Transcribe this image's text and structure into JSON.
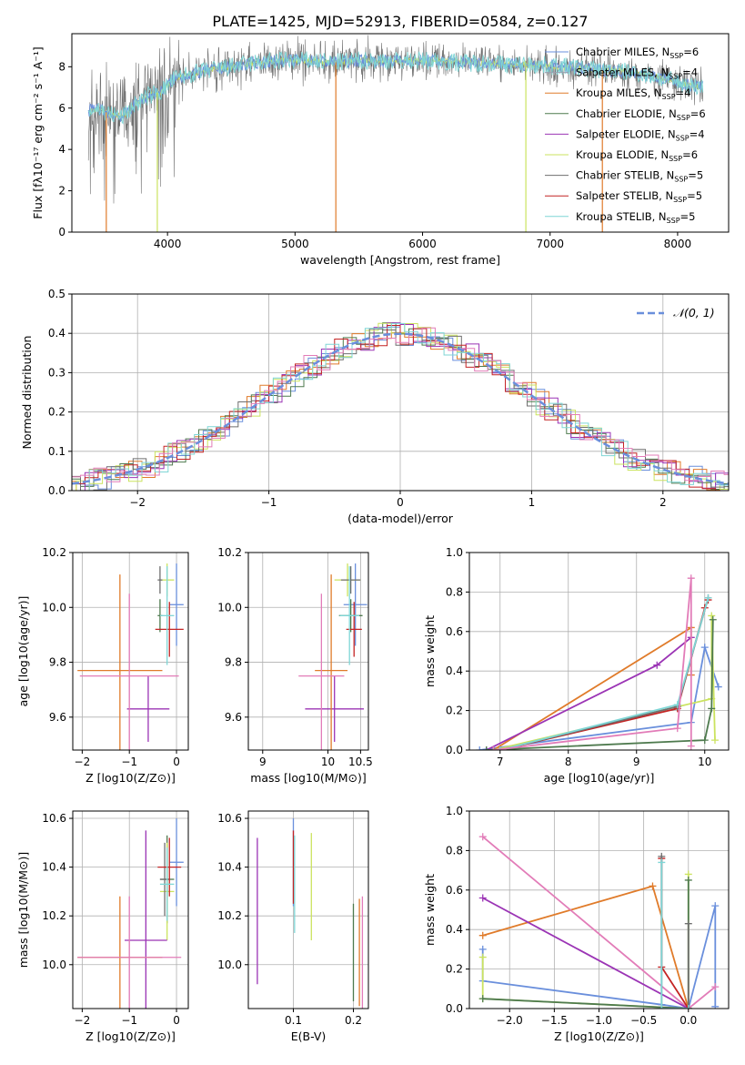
{
  "figure_title": "PLATE=1425, MJD=52913, FIBERID=0584, z=0.127",
  "colors": {
    "Chabrier MILES": "#6a8fdc",
    "Salpeter MILES": "#9aa0b0",
    "Kroupa MILES": "#e07b2a",
    "Chabrier ELODIE": "#4e7a4e",
    "Salpeter ELODIE": "#9b34b5",
    "Kroupa ELODIE": "#cbe35f",
    "Chabrier STELIB": "#6f6f6f",
    "Salpeter STELIB": "#c42424",
    "Kroupa STELIB": "#7fd6d6",
    "pink": "#e27cb8",
    "grid": "#b0b0b0"
  },
  "chart_data": [
    {
      "id": "spectrum",
      "type": "line",
      "title": "PLATE=1425, MJD=52913, FIBERID=0584, z=0.127",
      "xlabel": "wavelength [Angstrom, rest frame]",
      "xlim": [
        3250,
        8400
      ],
      "ylim": [
        0,
        9.6
      ],
      "xticks": [
        4000,
        5000,
        6000,
        7000,
        8000
      ],
      "yticks": [
        0,
        2,
        4,
        6,
        8
      ],
      "grid": false,
      "legend_position": "right",
      "legend": [
        {
          "label": "Chabrier MILES, N_SSP=6",
          "color_key": "Chabrier MILES"
        },
        {
          "label": "Salpeter MILES, N_SSP=4",
          "color_key": "Salpeter MILES"
        },
        {
          "label": "Kroupa MILES, N_SSP=4",
          "color_key": "Kroupa MILES"
        },
        {
          "label": "Chabrier ELODIE, N_SSP=6",
          "color_key": "Chabrier ELODIE"
        },
        {
          "label": "Salpeter ELODIE, N_SSP=4",
          "color_key": "Salpeter ELODIE"
        },
        {
          "label": "Kroupa ELODIE, N_SSP=6",
          "color_key": "Kroupa ELODIE"
        },
        {
          "label": "Chabrier STELIB, N_SSP=5",
          "color_key": "Chabrier STELIB"
        },
        {
          "label": "Salpeter STELIB, N_SSP=5",
          "color_key": "Salpeter STELIB"
        },
        {
          "label": "Kroupa STELIB, N_SSP=5",
          "color_key": "Kroupa STELIB"
        }
      ],
      "continuum": {
        "x": [
          3350,
          3450,
          3550,
          3650,
          3750,
          3850,
          3950,
          4050,
          4150,
          4300,
          4500,
          4700,
          4900,
          5100,
          5300,
          5500,
          5700,
          5900,
          6100,
          6300,
          6500,
          6700,
          6900,
          7100,
          7300,
          7500,
          7700,
          7900,
          8100,
          8200
        ],
        "y": [
          5.8,
          6.0,
          5.7,
          5.6,
          6.2,
          6.6,
          6.8,
          7.4,
          7.6,
          7.8,
          8.0,
          8.2,
          8.3,
          8.3,
          8.2,
          8.3,
          8.3,
          8.3,
          8.3,
          8.2,
          8.2,
          8.1,
          8.1,
          8.0,
          7.9,
          7.8,
          7.7,
          7.4,
          7.1,
          7.0
        ]
      },
      "drops": [
        {
          "x": 3520,
          "y": 0.0,
          "color_key": "Kroupa MILES"
        },
        {
          "x": 3920,
          "y": 0.0,
          "color_key": "Kroupa ELODIE"
        },
        {
          "x": 5320,
          "y": 0.0,
          "color_key": "Kroupa MILES"
        },
        {
          "x": 6810,
          "y": 0.0,
          "color_key": "Kroupa ELODIE"
        },
        {
          "x": 7410,
          "y": 0.0,
          "color_key": "Kroupa MILES"
        }
      ]
    },
    {
      "id": "residuals",
      "type": "line",
      "xlabel": "(data-model)/error",
      "ylabel": "Normed distribution",
      "xlim": [
        -2.5,
        2.5
      ],
      "ylim": [
        0,
        0.5
      ],
      "xticks": [
        -2,
        -1,
        0,
        1,
        2
      ],
      "yticks": [
        0.0,
        0.1,
        0.2,
        0.3,
        0.4,
        0.5
      ],
      "grid": true,
      "legend_position": "top-right",
      "legend_label": "𝒩(0, 1)",
      "gaussian": {
        "mu": 0,
        "sigma": 1,
        "color_key": "Chabrier MILES"
      }
    },
    {
      "id": "age_vs_Z",
      "type": "scatter",
      "xlabel": "Z [log10(Z/Z⊙)]",
      "ylabel": "age  [log10(age/yr)]",
      "xlim": [
        -2.2,
        0.25
      ],
      "ylim": [
        9.48,
        10.2
      ],
      "xticks": [
        -2,
        -1,
        0
      ],
      "yticks": [
        9.6,
        9.8,
        10.0,
        10.2
      ],
      "grid": true,
      "points": [
        {
          "x": 0.0,
          "xerr": 0.15,
          "y": 10.01,
          "yerr": 0.15,
          "color_key": "Chabrier MILES"
        },
        {
          "x": -0.35,
          "xerr": 0.05,
          "y": 9.97,
          "yerr": 0.06,
          "color_key": "Chabrier ELODIE"
        },
        {
          "x": -0.2,
          "xerr": 0.15,
          "y": 10.1,
          "yerr": 0.06,
          "color_key": "Kroupa ELODIE"
        },
        {
          "x": -0.35,
          "xerr": 0.05,
          "y": 10.1,
          "yerr": 0.05,
          "color_key": "Chabrier STELIB"
        },
        {
          "x": -0.15,
          "xerr": 0.3,
          "y": 9.92,
          "yerr": 0.1,
          "color_key": "Salpeter STELIB"
        },
        {
          "x": -0.2,
          "xerr": 0.15,
          "y": 9.97,
          "yerr": 0.18,
          "color_key": "Kroupa STELIB"
        },
        {
          "x": -0.6,
          "xerr": 0.45,
          "y": 9.63,
          "yerr": 0.12,
          "color_key": "Salpeter ELODIE"
        },
        {
          "x": -1.2,
          "xerr": 0.9,
          "y": 9.77,
          "yerr": 0.35,
          "color_key": "Kroupa MILES"
        },
        {
          "x": -1.0,
          "xerr": 1.05,
          "y": 9.75,
          "yerr": 0.3,
          "color_key": "pink"
        }
      ]
    },
    {
      "id": "age_vs_mass",
      "type": "scatter",
      "xlabel": "mass [log10(M/M⊙)]",
      "xlim": [
        8.78,
        10.62
      ],
      "ylim": [
        9.48,
        10.2
      ],
      "xticks": [
        9,
        10
      ],
      "xtick_labels": [
        "9",
        "10"
      ],
      "extra_xtick": {
        "value": 10.5,
        "label": "10.5"
      },
      "yticks": [
        9.6,
        9.8,
        10.0,
        10.2
      ],
      "grid": true,
      "points": [
        {
          "x": 10.42,
          "xerr": 0.18,
          "y": 10.01,
          "yerr": 0.15,
          "color_key": "Chabrier MILES"
        },
        {
          "x": 10.35,
          "xerr": 0.18,
          "y": 9.97,
          "yerr": 0.06,
          "color_key": "Chabrier ELODIE"
        },
        {
          "x": 10.3,
          "xerr": 0.2,
          "y": 10.1,
          "yerr": 0.06,
          "color_key": "Kroupa ELODIE"
        },
        {
          "x": 10.35,
          "xerr": 0.15,
          "y": 10.1,
          "yerr": 0.05,
          "color_key": "Chabrier STELIB"
        },
        {
          "x": 10.4,
          "xerr": 0.12,
          "y": 9.92,
          "yerr": 0.1,
          "color_key": "Salpeter STELIB"
        },
        {
          "x": 10.33,
          "xerr": 0.15,
          "y": 9.97,
          "yerr": 0.18,
          "color_key": "Kroupa STELIB"
        },
        {
          "x": 10.1,
          "xerr": 0.45,
          "y": 9.63,
          "yerr": 0.12,
          "color_key": "Salpeter ELODIE"
        },
        {
          "x": 10.05,
          "xerr": 0.25,
          "y": 9.77,
          "yerr": 0.35,
          "color_key": "Kroupa MILES"
        },
        {
          "x": 9.9,
          "xerr": 0.35,
          "y": 9.75,
          "yerr": 0.3,
          "color_key": "pink"
        }
      ]
    },
    {
      "id": "weight_vs_age",
      "type": "line",
      "xlabel": "age  [log10(age/yr)]",
      "ylabel": "mass weight",
      "xlim": [
        6.55,
        10.35
      ],
      "ylim": [
        0,
        1.0
      ],
      "xticks": [
        7,
        8,
        9,
        10
      ],
      "yticks": [
        0.0,
        0.2,
        0.4,
        0.6,
        0.8,
        1.0
      ],
      "grid": true,
      "series": [
        {
          "color_key": "Chabrier MILES",
          "x": [
            6.7,
            9.8,
            10.0,
            10.2
          ],
          "y": [
            0.0,
            0.14,
            0.52,
            0.32
          ]
        },
        {
          "color_key": "Kroupa MILES",
          "x": [
            6.9,
            9.8,
            9.8
          ],
          "y": [
            0.0,
            0.62,
            0.38
          ]
        },
        {
          "color_key": "Salpeter ELODIE",
          "x": [
            6.8,
            9.3,
            9.8
          ],
          "y": [
            0.0,
            0.43,
            0.57
          ]
        },
        {
          "color_key": "Kroupa ELODIE",
          "x": [
            6.9,
            10.1,
            10.1,
            10.15
          ],
          "y": [
            0.0,
            0.26,
            0.68,
            0.05
          ]
        },
        {
          "color_key": "Chabrier ELODIE",
          "x": [
            6.8,
            10.0,
            10.1,
            10.12
          ],
          "y": [
            0.0,
            0.05,
            0.21,
            0.66
          ]
        },
        {
          "color_key": "Salpeter STELIB",
          "x": [
            7.0,
            9.6,
            10.0,
            10.05
          ],
          "y": [
            0.0,
            0.21,
            0.72,
            0.76
          ]
        },
        {
          "color_key": "Chabrier STELIB",
          "x": [
            7.0,
            9.6,
            10.05
          ],
          "y": [
            0.0,
            0.22,
            0.77
          ]
        },
        {
          "color_key": "Kroupa STELIB",
          "x": [
            7.0,
            9.6,
            10.05
          ],
          "y": [
            0.0,
            0.23,
            0.77
          ]
        },
        {
          "color_key": "pink",
          "x": [
            6.9,
            9.6,
            9.8,
            9.8
          ],
          "y": [
            0.0,
            0.11,
            0.87,
            0.02
          ]
        }
      ]
    },
    {
      "id": "mass_vs_Z",
      "type": "scatter",
      "xlabel": "Z [log10(Z/Z⊙)]",
      "ylabel": "mass [log10(M/M⊙)]",
      "xlim": [
        -2.2,
        0.25
      ],
      "ylim": [
        9.82,
        10.63
      ],
      "xticks": [
        -2,
        -1,
        0
      ],
      "yticks": [
        10.0,
        10.2,
        10.4,
        10.6
      ],
      "grid": true,
      "points": [
        {
          "x": 0.0,
          "xerr": 0.15,
          "y": 10.42,
          "yerr": 0.18,
          "color_key": "Chabrier MILES"
        },
        {
          "x": -0.2,
          "xerr": 0.15,
          "y": 10.35,
          "yerr": 0.18,
          "color_key": "Chabrier ELODIE"
        },
        {
          "x": -0.2,
          "xerr": 0.15,
          "y": 10.3,
          "yerr": 0.2,
          "color_key": "Kroupa ELODIE"
        },
        {
          "x": -0.25,
          "xerr": 0.1,
          "y": 10.35,
          "yerr": 0.15,
          "color_key": "Chabrier STELIB"
        },
        {
          "x": -0.15,
          "xerr": 0.25,
          "y": 10.4,
          "yerr": 0.12,
          "color_key": "Salpeter STELIB"
        },
        {
          "x": -0.2,
          "xerr": 0.15,
          "y": 10.33,
          "yerr": 0.15,
          "color_key": "Kroupa STELIB"
        },
        {
          "x": -0.65,
          "xerr": 0.45,
          "y": 10.1,
          "yerr": 0.45,
          "color_key": "Salpeter ELODIE"
        },
        {
          "x": -1.2,
          "xerr": 0.9,
          "y": 10.03,
          "yerr": 0.25,
          "color_key": "Kroupa MILES"
        },
        {
          "x": -1.0,
          "xerr": 1.1,
          "y": 10.03,
          "yerr": 0.25,
          "color_key": "pink"
        }
      ]
    },
    {
      "id": "mass_vs_ebv",
      "type": "scatter",
      "xlabel": "E(B-V)",
      "xlim": [
        0.025,
        0.225
      ],
      "ylim": [
        9.82,
        10.63
      ],
      "xticks": [
        0.1,
        0.2
      ],
      "yticks": [
        10.0,
        10.2,
        10.4,
        10.6
      ],
      "grid": true,
      "points": [
        {
          "x": 0.04,
          "xerr": 0.0,
          "y": 10.22,
          "yerr": 0.3,
          "color_key": "Salpeter ELODIE"
        },
        {
          "x": 0.1,
          "xerr": 0.0,
          "y": 10.42,
          "yerr": 0.18,
          "color_key": "Chabrier MILES"
        },
        {
          "x": 0.1,
          "xerr": 0.0,
          "y": 10.4,
          "yerr": 0.15,
          "color_key": "Salpeter STELIB"
        },
        {
          "x": 0.102,
          "xerr": 0.0,
          "y": 10.33,
          "yerr": 0.2,
          "color_key": "Kroupa STELIB"
        },
        {
          "x": 0.13,
          "xerr": 0.0,
          "y": 10.32,
          "yerr": 0.22,
          "color_key": "Kroupa ELODIE"
        },
        {
          "x": 0.2,
          "xerr": 0.0,
          "y": 10.05,
          "yerr": 0.2,
          "color_key": "Chabrier ELODIE"
        },
        {
          "x": 0.21,
          "xerr": 0.0,
          "y": 10.05,
          "yerr": 0.22,
          "color_key": "Kroupa MILES"
        },
        {
          "x": 0.215,
          "xerr": 0.0,
          "y": 10.05,
          "yerr": 0.23,
          "color_key": "pink"
        }
      ]
    },
    {
      "id": "weight_vs_Z",
      "type": "line",
      "xlabel": "Z [log10(Z/Z⊙)]",
      "ylabel": "mass weight",
      "xlim": [
        -2.45,
        0.45
      ],
      "ylim": [
        0,
        1.0
      ],
      "xticks": [
        -2.0,
        -1.5,
        -1.0,
        -0.5,
        0.0
      ],
      "yticks": [
        0.0,
        0.2,
        0.4,
        0.6,
        0.8,
        1.0
      ],
      "grid": true,
      "series": [
        {
          "color_key": "Chabrier MILES",
          "x": [
            -2.3,
            -2.3,
            -0.3,
            0.0,
            0.3,
            0.3
          ],
          "y": [
            0.3,
            0.14,
            0.02,
            0.0,
            0.52,
            0.01
          ]
        },
        {
          "color_key": "Kroupa MILES",
          "x": [
            -2.3,
            -0.4,
            0.0
          ],
          "y": [
            0.37,
            0.62,
            0.0
          ]
        },
        {
          "color_key": "pink",
          "x": [
            -2.3,
            0.0,
            0.3
          ],
          "y": [
            0.87,
            0.0,
            0.11
          ]
        },
        {
          "color_key": "Salpeter ELODIE",
          "x": [
            -2.3,
            0.0
          ],
          "y": [
            0.56,
            0.0
          ]
        },
        {
          "color_key": "Kroupa ELODIE",
          "x": [
            -2.3,
            -2.3,
            0.0,
            0.0
          ],
          "y": [
            0.26,
            0.05,
            0.0,
            0.68
          ]
        },
        {
          "color_key": "Chabrier ELODIE",
          "x": [
            -2.3,
            0.0,
            0.0
          ],
          "y": [
            0.05,
            0.0,
            0.65
          ]
        },
        {
          "color_key": "Salpeter STELIB",
          "x": [
            -0.3,
            -0.3,
            0.0
          ],
          "y": [
            0.76,
            0.21,
            0.0
          ]
        },
        {
          "color_key": "Chabrier STELIB",
          "x": [
            -0.3,
            -0.3,
            0.0,
            0.0
          ],
          "y": [
            0.77,
            0.0,
            0.0,
            0.43
          ]
        },
        {
          "color_key": "Kroupa STELIB",
          "x": [
            -0.3,
            -0.3,
            0.0
          ],
          "y": [
            0.74,
            0.0,
            0.0
          ]
        }
      ]
    }
  ]
}
